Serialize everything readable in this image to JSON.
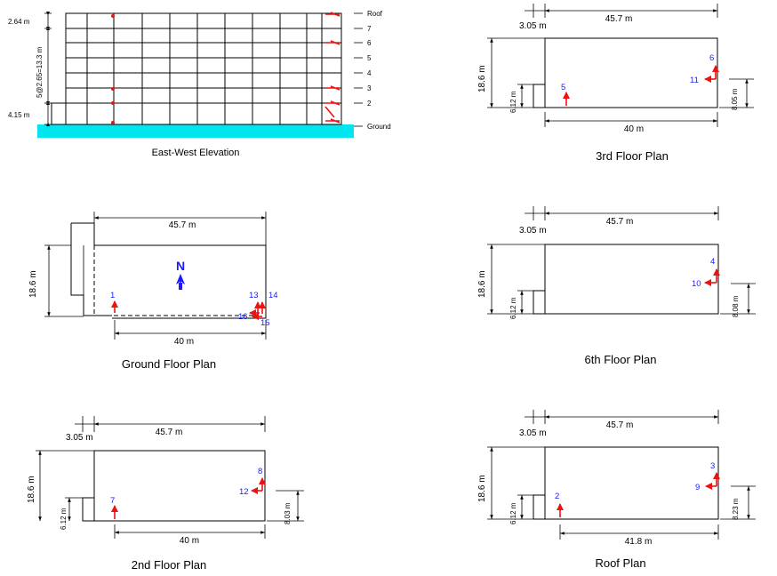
{
  "elevation": {
    "title": "East-West Elevation",
    "levels": [
      "Roof",
      "7",
      "6",
      "5",
      "4",
      "3",
      "2",
      "Ground"
    ],
    "dim_top": "2.64 m",
    "dim_middle": "5@2.65=13.3 m",
    "dim_bottom": "4.15 m"
  },
  "ground_plan": {
    "title": "Ground Floor Plan",
    "dim_length": "45.7 m",
    "dim_width": "18.6 m",
    "dim_bottom": "40 m",
    "north": "N",
    "sensors": [
      "1",
      "13",
      "14",
      "15",
      "16"
    ]
  },
  "second_plan": {
    "title": "2nd Floor Plan",
    "dim_offset": "3.05 m",
    "dim_length": "45.7 m",
    "dim_width": "18.6 m",
    "dim_notch": "6.12 m",
    "dim_right": "8.03 m",
    "dim_bottom": "40 m",
    "sensors": [
      "7",
      "8",
      "12"
    ]
  },
  "third_plan": {
    "title": "3rd Floor Plan",
    "dim_offset": "3.05 m",
    "dim_length": "45.7 m",
    "dim_width": "18.6 m",
    "dim_notch": "6.12 m",
    "dim_right": "8.05 m",
    "dim_bottom": "40 m",
    "sensors": [
      "5",
      "6",
      "11"
    ]
  },
  "sixth_plan": {
    "title": "6th Floor Plan",
    "dim_offset": "3.05 m",
    "dim_length": "45.7 m",
    "dim_width": "18.6 m",
    "dim_notch": "6.12 m",
    "dim_right": "8.08 m",
    "sensors": [
      "4",
      "10"
    ]
  },
  "roof_plan": {
    "title": "Roof Plan",
    "dim_offset": "3.05 m",
    "dim_length": "45.7 m",
    "dim_width": "18.6 m",
    "dim_notch": "6.12 m",
    "dim_right": "8.23 m",
    "dim_bottom": "41.8 m",
    "sensors": [
      "2",
      "3",
      "9"
    ]
  },
  "colors": {
    "ground": "#00e5ee",
    "sensor": "#ee1111",
    "label": "#1a1aff"
  }
}
